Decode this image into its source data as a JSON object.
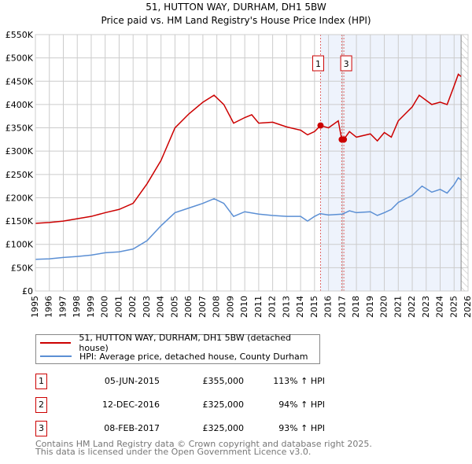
{
  "chart_data": {
    "type": "line",
    "title": "51, HUTTON WAY, DURHAM, DH1 5BW",
    "subtitle": "Price paid vs. HM Land Registry's House Price Index (HPI)",
    "xlim": [
      1995,
      2026
    ],
    "ylim": [
      0,
      550000
    ],
    "x_ticks": [
      "1995",
      "1996",
      "1997",
      "1998",
      "1999",
      "2000",
      "2001",
      "2002",
      "2003",
      "2004",
      "2005",
      "2006",
      "2007",
      "2008",
      "2009",
      "2010",
      "2011",
      "2012",
      "2013",
      "2014",
      "2015",
      "2016",
      "2017",
      "2018",
      "2019",
      "2020",
      "2021",
      "2022",
      "2023",
      "2024",
      "2025",
      "2026"
    ],
    "y_ticks": [
      {
        "v": 0,
        "l": "£0"
      },
      {
        "v": 50000,
        "l": "£50K"
      },
      {
        "v": 100000,
        "l": "£100K"
      },
      {
        "v": 150000,
        "l": "£150K"
      },
      {
        "v": 200000,
        "l": "£200K"
      },
      {
        "v": 250000,
        "l": "£250K"
      },
      {
        "v": 300000,
        "l": "£300K"
      },
      {
        "v": 350000,
        "l": "£350K"
      },
      {
        "v": 400000,
        "l": "£400K"
      },
      {
        "v": 450000,
        "l": "£450K"
      },
      {
        "v": 500000,
        "l": "£500K"
      },
      {
        "v": 550000,
        "l": "£550K"
      }
    ],
    "grid": true,
    "shaded_from": 2015.43,
    "hatched_from": 2025.5,
    "series": [
      {
        "name": "51, HUTTON WAY, DURHAM, DH1 5BW (detached house)",
        "color": "#cc0000",
        "x": [
          1995,
          1996,
          1997,
          1998,
          1999,
          2000,
          2001,
          2002,
          2003,
          2004,
          2005,
          2006,
          2007,
          2007.8,
          2008.5,
          2009.2,
          2010,
          2010.5,
          2011,
          2012,
          2013,
          2014,
          2014.5,
          2015,
          2015.43,
          2016,
          2016.7,
          2016.95,
          2017.1,
          2017.5,
          2018,
          2019,
          2019.5,
          2020,
          2020.5,
          2021,
          2022,
          2022.5,
          2023.4,
          2024,
          2024.5,
          2025,
          2025.3,
          2025.5
        ],
        "y": [
          145000,
          147000,
          150000,
          155000,
          160000,
          168000,
          175000,
          188000,
          230000,
          280000,
          350000,
          380000,
          405000,
          420000,
          400000,
          360000,
          372000,
          378000,
          360000,
          362000,
          352000,
          345000,
          335000,
          342000,
          355000,
          350000,
          365000,
          325000,
          325000,
          342000,
          330000,
          337000,
          322000,
          340000,
          330000,
          365000,
          395000,
          420000,
          400000,
          405000,
          400000,
          440000,
          465000,
          460000
        ]
      },
      {
        "name": "HPI: Average price, detached house, County Durham",
        "color": "#5b8fd4",
        "x": [
          1995,
          1996,
          1997,
          1998,
          1999,
          2000,
          2001,
          2002,
          2003,
          2004,
          2005,
          2006,
          2007,
          2007.8,
          2008.5,
          2009.2,
          2010,
          2011,
          2012,
          2013,
          2014,
          2014.5,
          2015,
          2015.4,
          2016,
          2017,
          2017.5,
          2018,
          2019,
          2019.5,
          2020,
          2020.5,
          2021,
          2022,
          2022.7,
          2023.4,
          2024,
          2024.5,
          2025,
          2025.3,
          2025.5
        ],
        "y": [
          68000,
          69000,
          72000,
          74000,
          77000,
          82000,
          84000,
          90000,
          108000,
          140000,
          168000,
          178000,
          188000,
          198000,
          188000,
          160000,
          170000,
          165000,
          162000,
          160000,
          160000,
          150000,
          160000,
          166000,
          163000,
          165000,
          172000,
          168000,
          170000,
          162000,
          168000,
          175000,
          190000,
          205000,
          225000,
          212000,
          218000,
          210000,
          228000,
          243000,
          238000
        ]
      }
    ],
    "transactions": [
      {
        "n": "1",
        "date": "05-JUN-2015",
        "x": 2015.43,
        "price": 355000,
        "price_label": "£355,000",
        "hpi": "113% ↑ HPI"
      },
      {
        "n": "2",
        "date": "12-DEC-2016",
        "x": 2016.95,
        "price": 325000,
        "price_label": "£325,000",
        "hpi": "94% ↑ HPI"
      },
      {
        "n": "3",
        "date": "08-FEB-2017",
        "x": 2017.1,
        "price": 325000,
        "price_label": "£325,000",
        "hpi": "93% ↑ HPI"
      }
    ]
  },
  "footer": {
    "line1": "Contains HM Land Registry data © Crown copyright and database right 2025.",
    "line2": "This data is licensed under the Open Government Licence v3.0."
  }
}
